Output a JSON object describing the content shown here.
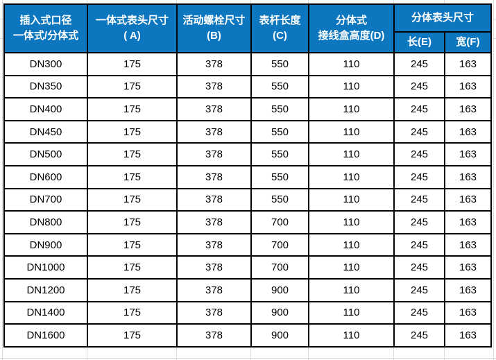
{
  "colors": {
    "header_bg": "#0C76BE",
    "header_text": "#FFFFFF",
    "cell_border": "#000000",
    "gridline": "#DCDCDC",
    "body_text": "#000000"
  },
  "table": {
    "header": {
      "col1": {
        "line1": "插入式口径",
        "line2": "一体式/分体式"
      },
      "col2": {
        "line1": "一体式表头尺寸",
        "line2": "( A)"
      },
      "col3": {
        "line1": "活动螺栓尺寸",
        "line2": "(B)"
      },
      "col4": {
        "line1": "表杆长度",
        "line2": "(C)"
      },
      "col5": {
        "line1": "分体式",
        "line2": "接线盒高度(D)"
      },
      "group": {
        "title": "分体表头尺寸",
        "sub1": "长(E)",
        "sub2": "宽(F)"
      }
    },
    "rows": [
      [
        "DN300",
        "175",
        "378",
        "550",
        "110",
        "245",
        "163"
      ],
      [
        "DN350",
        "175",
        "378",
        "550",
        "110",
        "245",
        "163"
      ],
      [
        "DN400",
        "175",
        "378",
        "550",
        "110",
        "245",
        "163"
      ],
      [
        "DN450",
        "175",
        "378",
        "550",
        "110",
        "245",
        "163"
      ],
      [
        "DN500",
        "175",
        "378",
        "550",
        "110",
        "245",
        "163"
      ],
      [
        "DN600",
        "175",
        "378",
        "550",
        "110",
        "245",
        "163"
      ],
      [
        "DN700",
        "175",
        "378",
        "550",
        "110",
        "245",
        "163"
      ],
      [
        "DN800",
        "175",
        "378",
        "700",
        "110",
        "245",
        "163"
      ],
      [
        "DN900",
        "175",
        "378",
        "700",
        "110",
        "245",
        "163"
      ],
      [
        "DN1000",
        "175",
        "378",
        "700",
        "110",
        "245",
        "163"
      ],
      [
        "DN1200",
        "175",
        "378",
        "900",
        "110",
        "245",
        "163"
      ],
      [
        "DN1400",
        "175",
        "378",
        "900",
        "110",
        "245",
        "163"
      ],
      [
        "DN1600",
        "175",
        "378",
        "900",
        "110",
        "245",
        "163"
      ]
    ]
  }
}
